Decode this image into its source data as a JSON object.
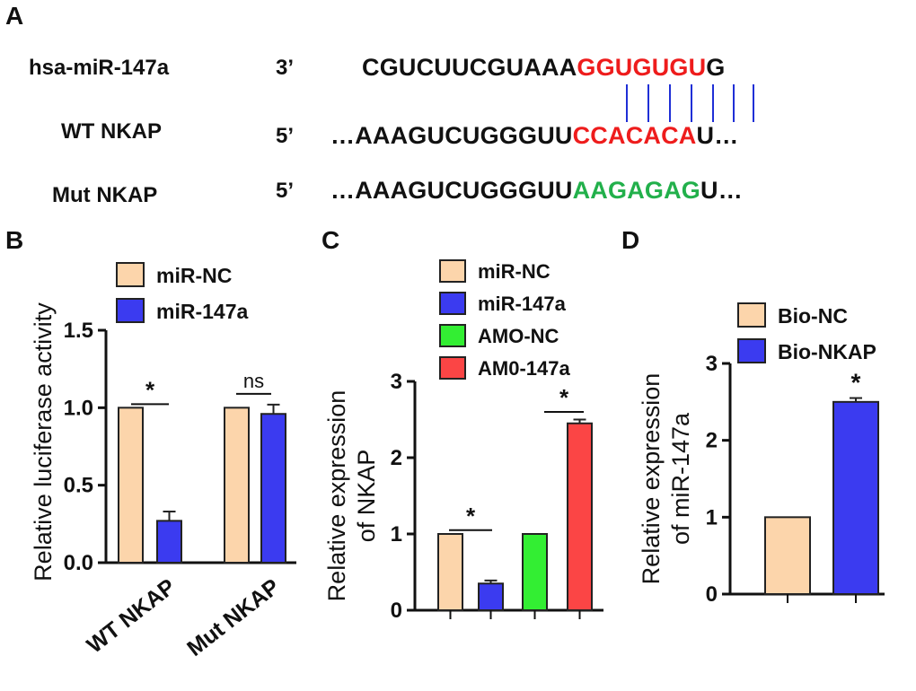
{
  "panels": {
    "a": "A",
    "b": "B",
    "c": "C",
    "d": "D"
  },
  "sequence": {
    "mirna": {
      "label": "hsa-miR-147a",
      "direction": "3’",
      "prefix": "CGUCUUCGUAAA",
      "seed": "GGUGUGU",
      "suffix": "G"
    },
    "wt": {
      "label": "WT NKAP",
      "direction": "5’",
      "prefix": "…AAAGUCUGGGUU",
      "site": "CCACACA",
      "suffix": "U…"
    },
    "mut": {
      "label": "Mut NKAP",
      "direction": "5’",
      "prefix": "…AAAGUCUGGGUU",
      "site": "AAGAGAG",
      "suffix": "U…"
    },
    "pairs": 7
  },
  "colors": {
    "beige": "#fcd5ab",
    "blue": "#3b3bf0",
    "green": "#33ee33",
    "red": "#fb4545",
    "seed_red": "#ee1c1c",
    "mut_green": "#22b04b",
    "pair_blue": "#1f2fd6"
  },
  "chart_data": [
    {
      "panel": "B",
      "type": "bar",
      "title": "",
      "xlabel": "",
      "ylabel": "Relative luciferase activity",
      "ylim": [
        0,
        1.5
      ],
      "yticks": [
        "0.0",
        "0.5",
        "1.0",
        "1.5"
      ],
      "categories": [
        "WT NKAP",
        "Mut NKAP"
      ],
      "series": [
        {
          "name": "miR-NC",
          "color": "#fcd5ab",
          "values": [
            1.0,
            1.0
          ],
          "errors": [
            0,
            0
          ]
        },
        {
          "name": "miR-147a",
          "color": "#3b3bf0",
          "values": [
            0.27,
            0.96
          ],
          "errors": [
            0.06,
            0.06
          ]
        }
      ],
      "significance": [
        "*",
        "ns"
      ],
      "legend": "top"
    },
    {
      "panel": "C",
      "type": "bar",
      "title": "",
      "xlabel": "",
      "ylabel": "Relative expression\nof NKAP",
      "ylim": [
        0,
        3
      ],
      "yticks": [
        "0",
        "1",
        "2",
        "3"
      ],
      "categories": [
        "miR-NC",
        "miR-147a",
        "AMO-NC",
        "AM0-147a"
      ],
      "series": [
        {
          "name": "miR-NC",
          "color": "#fcd5ab",
          "value": 1.0,
          "error": 0
        },
        {
          "name": "miR-147a",
          "color": "#3b3bf0",
          "value": 0.35,
          "error": 0.04
        },
        {
          "name": "AMO-NC",
          "color": "#33ee33",
          "value": 1.0,
          "error": 0
        },
        {
          "name": "AM0-147a",
          "color": "#fb4545",
          "value": 2.45,
          "error": 0.05
        }
      ],
      "significance": [
        "*",
        "*"
      ],
      "legend": "top"
    },
    {
      "panel": "D",
      "type": "bar",
      "title": "",
      "xlabel": "",
      "ylabel": "Relative expression\nof miR-147a",
      "ylim": [
        0,
        3
      ],
      "yticks": [
        "0",
        "1",
        "2",
        "3"
      ],
      "categories": [
        "Bio-NC",
        "Bio-NKAP"
      ],
      "series": [
        {
          "name": "Bio-NC",
          "color": "#fcd5ab",
          "value": 1.0,
          "error": 0
        },
        {
          "name": "Bio-NKAP",
          "color": "#3b3bf0",
          "value": 2.5,
          "error": 0.05
        }
      ],
      "significance": [
        "*"
      ],
      "legend": "top"
    }
  ]
}
